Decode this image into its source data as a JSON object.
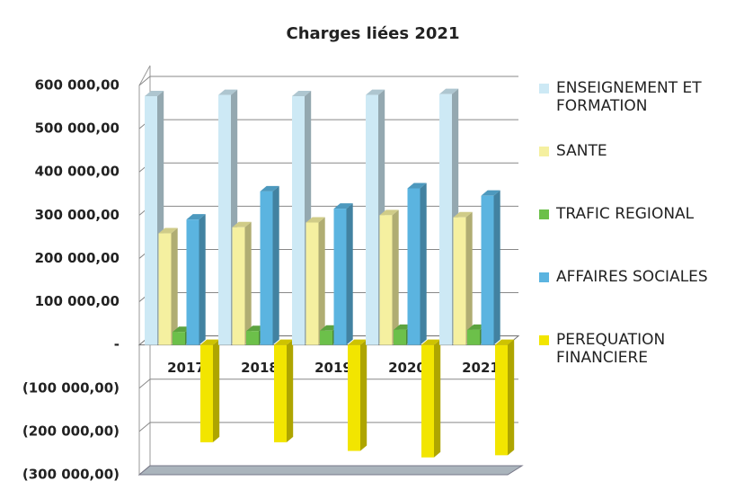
{
  "chart_data": {
    "type": "bar3d",
    "title": "Charges liées 2021",
    "categories": [
      "2017",
      "2018",
      "2019",
      "2020",
      "2021"
    ],
    "series": [
      {
        "name": "ENSEIGNEMENT ET FORMATION",
        "color": "#cde9f5",
        "values": [
          575000,
          578000,
          575000,
          578000,
          580000
        ]
      },
      {
        "name": "SANTE",
        "color": "#f5f0a0",
        "values": [
          258000,
          272000,
          283000,
          300000,
          295000
        ]
      },
      {
        "name": "TRAFIC REGIONAL",
        "color": "#6cc04a",
        "values": [
          30000,
          32000,
          33000,
          35000,
          35000
        ]
      },
      {
        "name": "AFFAIRES SOCIALES",
        "color": "#5bb4e0",
        "values": [
          290000,
          355000,
          315000,
          362000,
          345000
        ]
      },
      {
        "name": "PEREQUATION FINANCIERE",
        "color": "#f2e500",
        "values": [
          -225000,
          -225000,
          -245000,
          -260000,
          -255000
        ]
      }
    ],
    "ylim": [
      -300000,
      600000
    ],
    "yticks": [
      {
        "value": -300000,
        "label": "(300 000,00)"
      },
      {
        "value": -200000,
        "label": "(200 000,00)"
      },
      {
        "value": -100000,
        "label": "(100 000,00)"
      },
      {
        "value": 0,
        "label": "-"
      },
      {
        "value": 100000,
        "label": "100 000,00"
      },
      {
        "value": 200000,
        "label": "200 000,00"
      },
      {
        "value": 300000,
        "label": "300 000,00"
      },
      {
        "value": 400000,
        "label": "400 000,00"
      },
      {
        "value": 500000,
        "label": "500 000,00"
      },
      {
        "value": 600000,
        "label": "600 000,00"
      }
    ],
    "grid": true,
    "legend": "right"
  }
}
